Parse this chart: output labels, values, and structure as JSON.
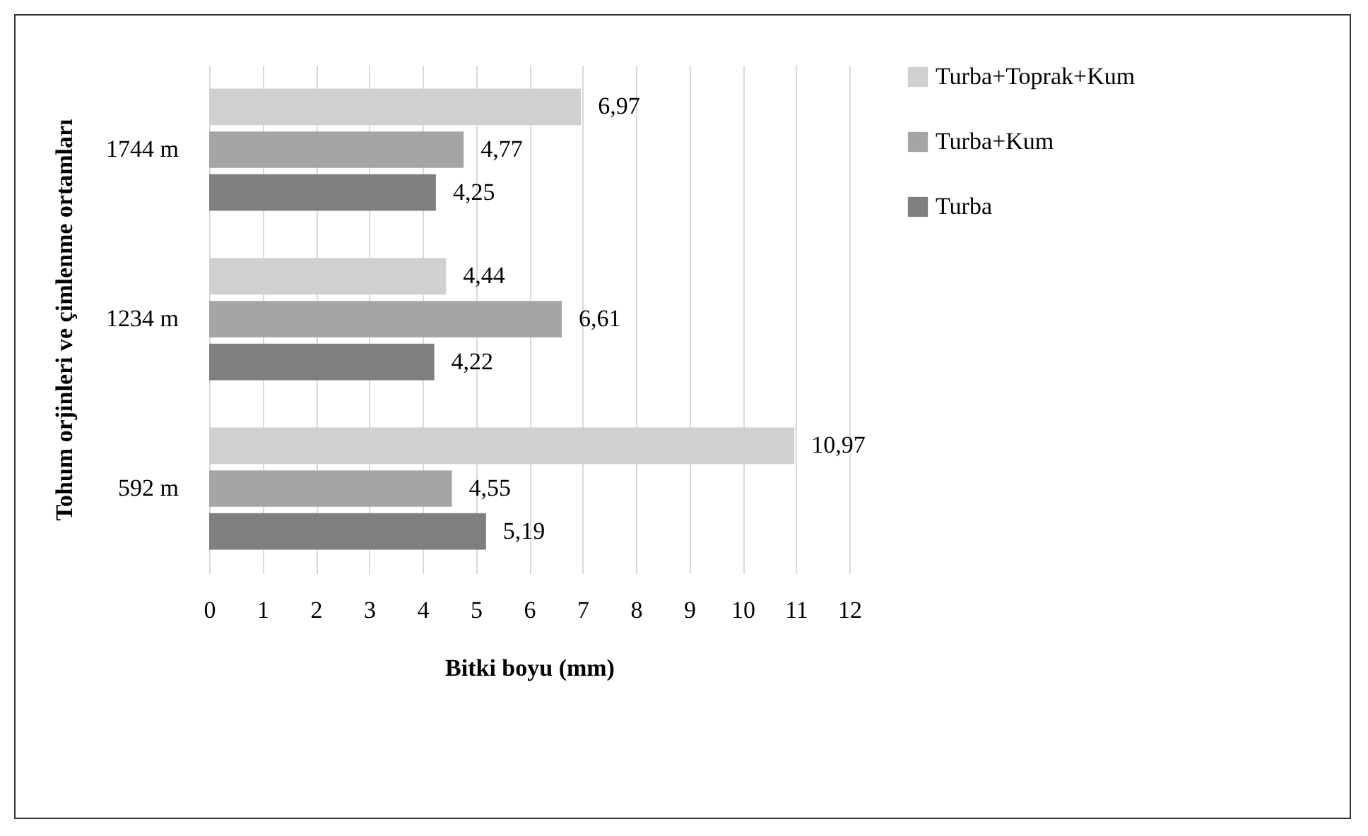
{
  "chart_data": {
    "type": "bar",
    "orientation": "horizontal",
    "xlabel": "Bitki boyu (mm)",
    "ylabel": "Tohum orjinleri ve çimlenme ortamları",
    "categories": [
      "1744 m",
      "1234 m",
      "592 m"
    ],
    "series": [
      {
        "name": "Turba+Toprak+Kum",
        "color": "#d0d0d0",
        "values": [
          6.97,
          4.44,
          10.97
        ],
        "value_labels": [
          "6,97",
          "4,44",
          "10,97"
        ]
      },
      {
        "name": "Turba+Kum",
        "color": "#a5a5a5",
        "values": [
          4.77,
          6.61,
          4.55
        ],
        "value_labels": [
          "4,77",
          "6,61",
          "4,55"
        ]
      },
      {
        "name": "Turba",
        "color": "#7f7f7f",
        "values": [
          4.25,
          4.22,
          5.19
        ],
        "value_labels": [
          "4,25",
          "4,22",
          "5,19"
        ]
      }
    ],
    "xlim": [
      0,
      12
    ],
    "xticks": [
      0,
      1,
      2,
      3,
      4,
      5,
      6,
      7,
      8,
      9,
      10,
      11,
      12
    ],
    "grid": "x",
    "legend": "right"
  }
}
